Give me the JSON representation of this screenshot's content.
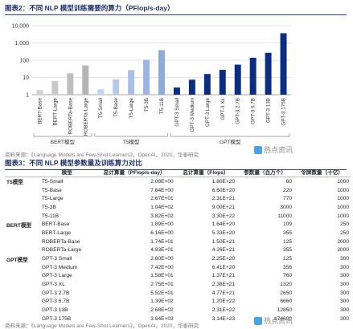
{
  "figure1": {
    "title": "图表2：不同 NLP 模型训练需要的算力（PFlop/s-day）",
    "source": "资料来源：《Language Models are Few-Shot Learners》，OpenAI，2020，华泰研究",
    "watermark": "热点资讯"
  },
  "chart_data": {
    "type": "bar",
    "scale": "log",
    "ylim": [
      1,
      10000
    ],
    "yticks": [
      "1",
      "10",
      "100",
      "1,000",
      "10,000"
    ],
    "grid": true,
    "categories": [
      "BERT-Base",
      "BERT-Large",
      "ROBERTa-Base",
      "ROBERTa-Large",
      "T5-Small",
      "T5-Base",
      "T5-Large",
      "T5-3B",
      "T5-11B",
      "GPT-3 Small",
      "GPT-3 Medium",
      "GPT-3 Large",
      "GPT-3 XL",
      "GPT-3 2.7B",
      "GPT-3 6.7B",
      "GPT-3 13B",
      "GPT-3 175B"
    ],
    "values": [
      1.89,
      6.16,
      17.4,
      49.3,
      2.08,
      7.64,
      26.7,
      104,
      382,
      2.6,
      7.42,
      15.8,
      27.5,
      55.2,
      139,
      268,
      3640
    ],
    "groups": [
      {
        "name": "BERT模型",
        "start": 0,
        "end": 3,
        "color": "#c9c9c9"
      },
      {
        "name": "T5模型",
        "start": 4,
        "end": 8,
        "color": "#b7c9e6"
      },
      {
        "name": "GPT模型",
        "start": 9,
        "end": 16,
        "color": "#0b2d82"
      }
    ]
  },
  "table": {
    "title": "图表3：不同 NLP 模型参数量及训练算力对比",
    "source": "资料来源：《Language Models are Few-Shot Learners》，OpenAI，2020，华泰研究",
    "watermark": "热点资讯",
    "headers": [
      "",
      "模型",
      "总计算量（PFlop/s-day）",
      "总计算量（Flops）",
      "参数量（百万个）",
      "令牌数量（十亿）"
    ],
    "rows": [
      [
        "T5模型",
        "T5-Small",
        "2.08E+00",
        "1.80E+20",
        "60",
        "1000"
      ],
      [
        "",
        "T5-Base",
        "7.64E+00",
        "6.60E+20",
        "220",
        "1000"
      ],
      [
        "",
        "T5-Large",
        "2.67E+01",
        "2.31E+21",
        "770",
        "1000"
      ],
      [
        "",
        "T5-3B",
        "1.04E+02",
        "9.00E+21",
        "3000",
        "1000"
      ],
      [
        "",
        "T5-11B",
        "3.82E+02",
        "3.30E+22",
        "11000",
        "1000"
      ],
      [
        "BERT模型",
        "BERT-Base",
        "1.89E+00",
        "1.64E+20",
        "109",
        "250"
      ],
      [
        "",
        "BERT-Large",
        "6.16E+00",
        "5.33E+20",
        "355",
        "250"
      ],
      [
        "",
        "ROBERTa-Base",
        "1.74E+01",
        "1.50E+21",
        "125",
        "2000"
      ],
      [
        "",
        "ROBERTa-Large",
        "4.93E+01",
        "4.26E+21",
        "355",
        "2000"
      ],
      [
        "GPT模型",
        "GPT-3 Small",
        "2.60E+00",
        "2.25E+20",
        "125",
        "300"
      ],
      [
        "",
        "GPT-3 Medium",
        "7.42E+00",
        "6.41E+20",
        "356",
        "300"
      ],
      [
        "",
        "GPT-3 Large",
        "1.58E+01",
        "1.37E+21",
        "760",
        "300"
      ],
      [
        "",
        "GPT-3 XL",
        "2.75E+01",
        "2.38E+21",
        "1320",
        "300"
      ],
      [
        "",
        "GPT-3 2.7B",
        "5.52E+01",
        "4.77E+21",
        "2650",
        "300"
      ],
      [
        "",
        "GPT-3 6.7B",
        "1.39E+02",
        "1.20E+22",
        "6660",
        "300"
      ],
      [
        "",
        "GPT-3 13B",
        "2.68E+02",
        "2.31E+22",
        "12850",
        "300"
      ],
      [
        "",
        "GPT-3 175B",
        "3.64E+03",
        "3.14E+23",
        "174600",
        "300"
      ]
    ]
  }
}
